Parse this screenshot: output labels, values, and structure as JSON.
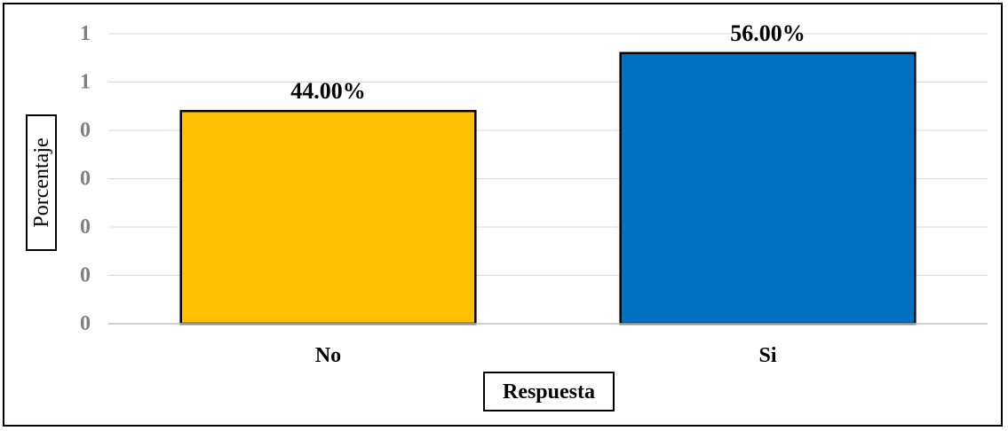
{
  "chart_data": {
    "type": "bar",
    "categories": [
      "No",
      "Si"
    ],
    "values": [
      44.0,
      56.0
    ],
    "data_labels": [
      "44.00%",
      "56.00%"
    ],
    "colors": [
      "#ffc000",
      "#0070c0"
    ],
    "xlabel": "Respuesta",
    "ylabel": "Porcentaje",
    "ytick_labels": [
      "1",
      "1",
      "0",
      "0",
      "0",
      "0",
      "0"
    ],
    "ylim": [
      0,
      60
    ],
    "grid": true,
    "legend": "none"
  }
}
